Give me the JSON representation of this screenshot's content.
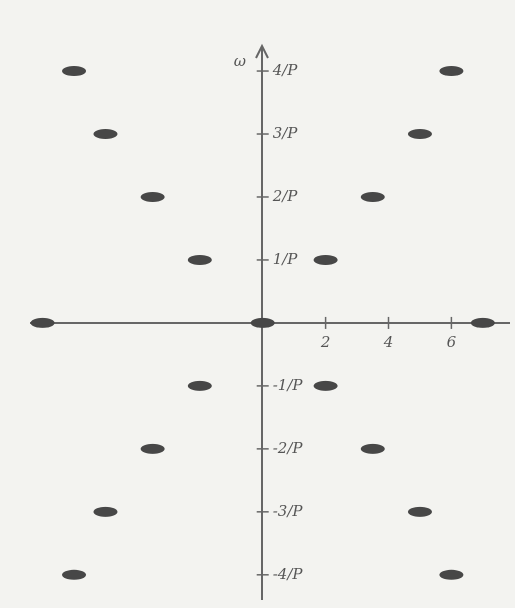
{
  "chart_data": {
    "type": "scatter",
    "y_label": "ω",
    "series": [
      {
        "color": "#474747",
        "x": [
          -6,
          -5,
          -3.5,
          -2,
          0,
          -7,
          6,
          5,
          3.5,
          2,
          7,
          -2,
          2,
          -3.5,
          3.5,
          -5,
          5,
          -6,
          6
        ],
        "y": [
          4,
          3,
          2,
          1,
          0,
          0,
          4,
          3,
          2,
          1,
          0,
          -1,
          -1,
          -2,
          -2,
          -3,
          -3,
          -4,
          -4
        ]
      }
    ],
    "xlim": [
      -7.4,
      7.8
    ],
    "ylim": [
      -4.4,
      4.35
    ],
    "xticks": [
      2,
      4,
      6
    ],
    "yticks": [
      {
        "value": 4,
        "label": "4/P"
      },
      {
        "value": 3,
        "label": "3/P"
      },
      {
        "value": 2,
        "label": "2/P"
      },
      {
        "value": 1,
        "label": "1/P"
      },
      {
        "value": -1,
        "label": "-1/P"
      },
      {
        "value": -2,
        "label": "-2/P"
      },
      {
        "value": -3,
        "label": "-3/P"
      },
      {
        "value": -4,
        "label": "-4/P"
      }
    ]
  }
}
